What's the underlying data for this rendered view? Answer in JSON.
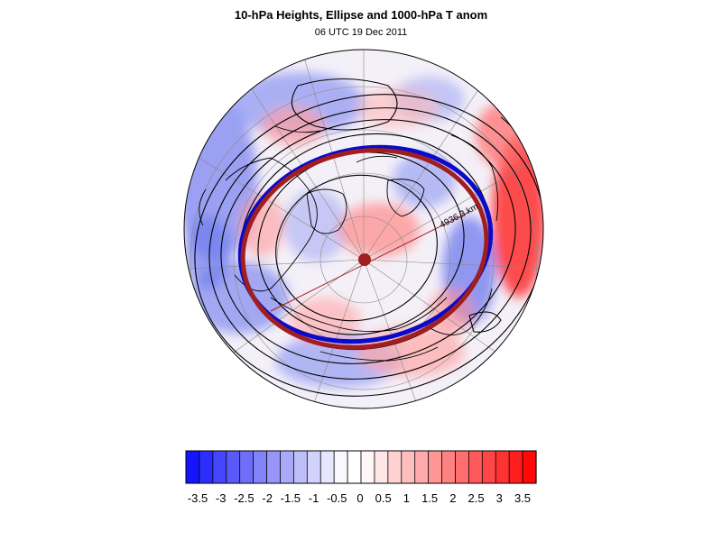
{
  "title": "10-hPa Heights, Ellipse and 1000-hPa T anom",
  "subtitle": "06 UTC 19 Dec 2011",
  "contour_label": "4936.3 km",
  "colors": {
    "ellipse_blue": "#0a0ac8",
    "ellipse_red": "#a01e1e",
    "center_dot": "#a01e1e",
    "contour": "#000000",
    "coast": "#000000",
    "grid": "#8a8a8a"
  },
  "colorbar": {
    "tick_labels": [
      "-3.5",
      "-3",
      "-2.5",
      "-2",
      "-1.5",
      "-1",
      "-0.5",
      "0",
      "0.5",
      "1",
      "1.5",
      "2",
      "2.5",
      "3",
      "3.5"
    ],
    "bins": [
      "#1414ff",
      "#2d2dff",
      "#4646ff",
      "#5a5afa",
      "#6e6efa",
      "#8282fa",
      "#9696fa",
      "#aaaafa",
      "#bebefa",
      "#d2d2fc",
      "#e6e6fe",
      "#f8f8ff",
      "#ffffff",
      "#fff6f6",
      "#ffe6e6",
      "#ffd2d2",
      "#ffbebe",
      "#ffaaaa",
      "#ff9696",
      "#ff8282",
      "#ff6e6e",
      "#ff5a5a",
      "#ff4646",
      "#ff3232",
      "#ff1e1e",
      "#ff0a0a"
    ]
  }
}
